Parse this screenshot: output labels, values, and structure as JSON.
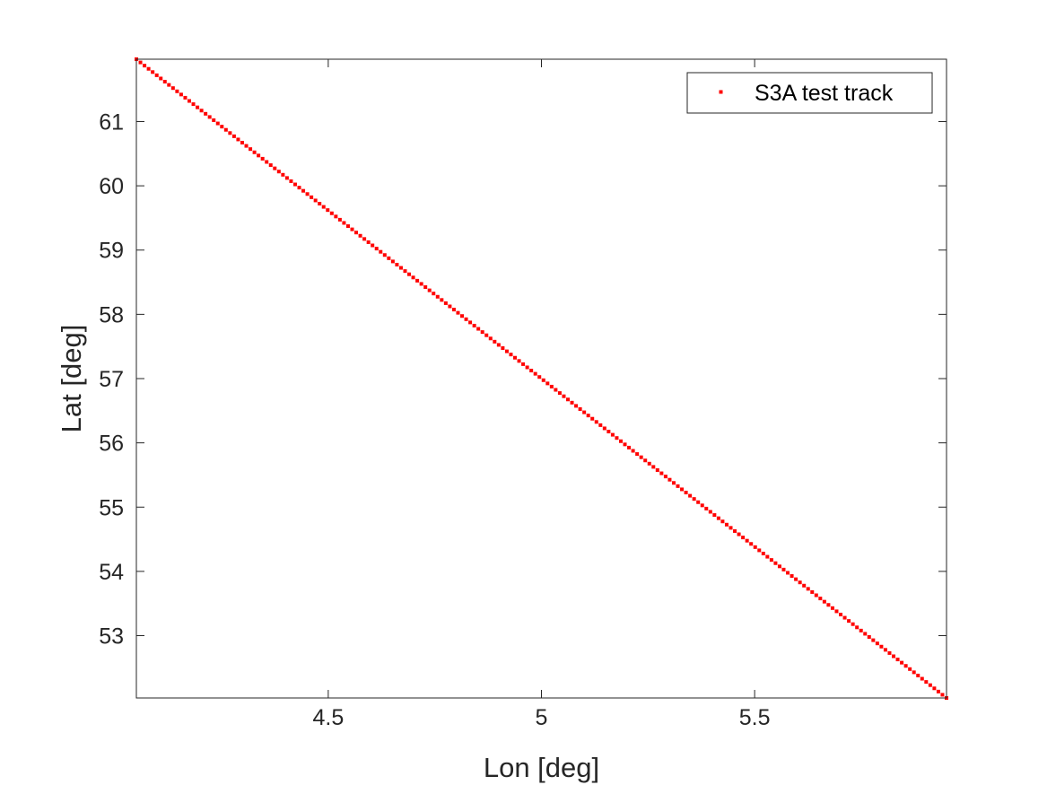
{
  "chart_data": {
    "type": "scatter",
    "title": "",
    "xlabel": "Lon [deg]",
    "ylabel": "Lat [deg]",
    "xlim": [
      4.05,
      5.95
    ],
    "ylim": [
      52.03,
      61.97
    ],
    "xticks": [
      4.5,
      5,
      5.5
    ],
    "xtick_labels": [
      "4.5",
      "5",
      "5.5"
    ],
    "yticks": [
      53,
      54,
      55,
      56,
      57,
      58,
      59,
      60,
      61
    ],
    "ytick_labels": [
      "53",
      "54",
      "55",
      "56",
      "57",
      "58",
      "59",
      "60",
      "61"
    ],
    "grid": false,
    "legend": {
      "position": "top-right",
      "entries": [
        "S3A test track"
      ]
    },
    "series": [
      {
        "name": "S3A test track",
        "color": "#ff0000",
        "marker": "point",
        "x_start": 4.05,
        "y_start": 61.97,
        "x_end": 5.95,
        "y_end": 52.03,
        "n_points": 200
      }
    ]
  }
}
